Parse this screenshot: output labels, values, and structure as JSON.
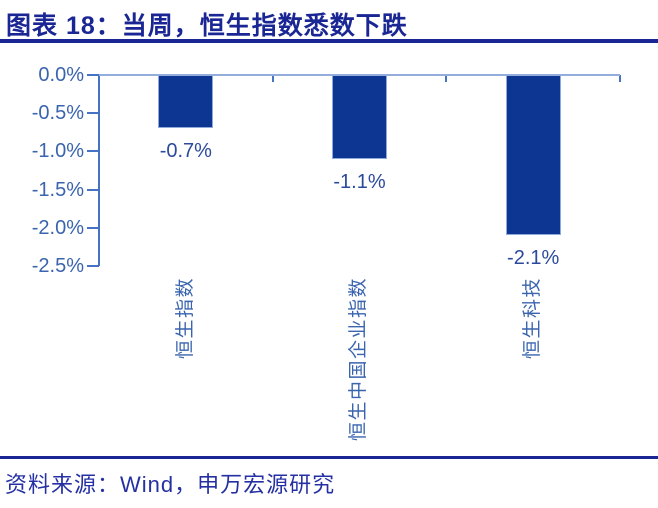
{
  "header": {
    "title": "图表 18：当周，恒生指数悉数下跌"
  },
  "chart_data": {
    "type": "bar",
    "title": "当周，恒生指数悉数下跌",
    "categories": [
      "恒生指数",
      "恒生中国企业指数",
      "恒生科技"
    ],
    "values": [
      -0.7,
      -1.1,
      -2.1
    ],
    "data_labels": [
      "-0.7%",
      "-1.1%",
      "-2.1%"
    ],
    "y_ticks": [
      "0.0%",
      "-0.5%",
      "-1.0%",
      "-1.5%",
      "-2.0%",
      "-2.5%"
    ],
    "ylim": [
      -2.5,
      0
    ],
    "xlabel": "",
    "ylabel": "",
    "unit": "percent",
    "grid": false,
    "legend": "none",
    "bar_color": "#0D3692",
    "axis_color": "#4472C4",
    "zero_line_color": "#93AEDC"
  },
  "footer": {
    "source": "资料来源：Wind，申万宏源研究"
  }
}
